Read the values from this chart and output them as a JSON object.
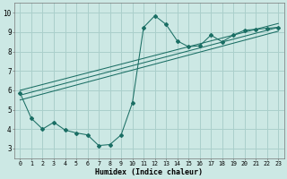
{
  "xlabel": "Humidex (Indice chaleur)",
  "bg_color": "#cce8e4",
  "grid_color": "#aacfcb",
  "line_color": "#1a6e64",
  "xlim": [
    -0.5,
    23.5
  ],
  "ylim": [
    2.5,
    10.5
  ],
  "main_curve_x": [
    0,
    1,
    2,
    3,
    4,
    5,
    6,
    7,
    8,
    9,
    10,
    11,
    12,
    13,
    14,
    15,
    16,
    17,
    18,
    19,
    20,
    21,
    22,
    23
  ],
  "main_curve_y": [
    5.85,
    4.55,
    4.0,
    4.35,
    3.95,
    3.8,
    3.7,
    3.15,
    3.2,
    3.7,
    5.35,
    9.25,
    9.85,
    9.4,
    8.55,
    8.25,
    8.3,
    8.85,
    8.5,
    8.85,
    9.1,
    9.15,
    9.2,
    9.25
  ],
  "reg_lines": [
    {
      "x0": 0,
      "y0": 5.5,
      "x1": 23,
      "y1": 9.05
    },
    {
      "x0": 0,
      "y0": 5.75,
      "x1": 23,
      "y1": 9.25
    },
    {
      "x0": 0,
      "y0": 6.0,
      "x1": 23,
      "y1": 9.45
    }
  ],
  "yticks": [
    3,
    4,
    5,
    6,
    7,
    8,
    9,
    10
  ],
  "xticks": [
    0,
    1,
    2,
    3,
    4,
    5,
    6,
    7,
    8,
    9,
    10,
    11,
    12,
    13,
    14,
    15,
    16,
    17,
    18,
    19,
    20,
    21,
    22,
    23
  ]
}
